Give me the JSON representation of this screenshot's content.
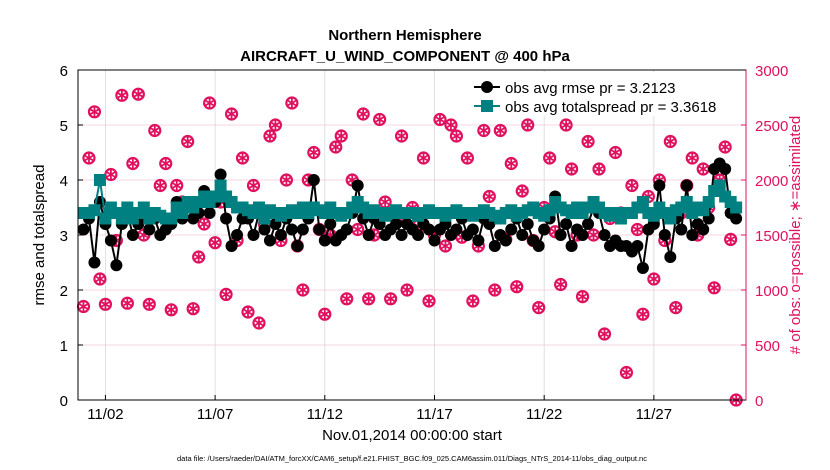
{
  "chart_data": {
    "type": "line",
    "title": "Northern Hemisphere",
    "subtitle": "AIRCRAFT_U_WIND_COMPONENT @ 400 hPa",
    "xlabel": "Nov.01,2014 00:00:00 start",
    "ylabel": "rmse and totalspread",
    "y2label": "# of obs: o=possible; ∗=assimilated",
    "footnote": "data file: /Users/raeder/DAI/ATM_forcXX/CAM6_setup/f.e21.FHIST_BGC.f09_025.CAM6assim.011/Diags_NTrS_2014-11/obs_diag_output.nc",
    "xlim_days": [
      -0.25,
      30.2
    ],
    "ylim": [
      0,
      6
    ],
    "y2lim": [
      0,
      3000
    ],
    "x_start_day": 0,
    "x_step_days": 0.25,
    "xticks": [
      {
        "day": 1,
        "label": "11/02"
      },
      {
        "day": 6,
        "label": "11/07"
      },
      {
        "day": 11,
        "label": "11/12"
      },
      {
        "day": 16,
        "label": "11/17"
      },
      {
        "day": 21,
        "label": "11/22"
      },
      {
        "day": 26,
        "label": "11/27"
      }
    ],
    "yticks": [
      "0",
      "1",
      "2",
      "3",
      "4",
      "5",
      "6"
    ],
    "y2ticks": [
      "0",
      "500",
      "1000",
      "1500",
      "2000",
      "2500",
      "3000"
    ],
    "grid": true,
    "legend_position": "top-right",
    "colors": {
      "rmse": "#000000",
      "spread": "#008080",
      "obs": "#e0115f"
    },
    "series": [
      {
        "name": "obs avg rmse pr = 3.2123",
        "axis": "left",
        "values": [
          3.1,
          3.3,
          2.5,
          3.6,
          3.2,
          2.9,
          2.45,
          3.2,
          3.4,
          3.0,
          3.2,
          3.3,
          3.1,
          3.3,
          3.0,
          3.1,
          3.2,
          3.6,
          3.3,
          3.6,
          3.3,
          3.4,
          3.8,
          3.4,
          3.6,
          4.1,
          3.3,
          2.8,
          3.0,
          3.3,
          3.3,
          3.0,
          3.4,
          3.1,
          2.9,
          3.2,
          3.0,
          3.3,
          3.1,
          2.8,
          3.1,
          3.3,
          4.0,
          3.1,
          2.9,
          3.2,
          2.9,
          3.0,
          3.1,
          3.4,
          3.9,
          3.3,
          3.0,
          3.3,
          3.2,
          3.0,
          3.1,
          3.2,
          3.0,
          3.2,
          3.1,
          3.0,
          3.2,
          3.1,
          2.9,
          3.1,
          3.2,
          3.0,
          3.1,
          3.3,
          3.0,
          3.1,
          2.9,
          3.3,
          3.2,
          2.8,
          3.0,
          2.9,
          3.1,
          3.3,
          3.0,
          3.2,
          2.9,
          2.8,
          3.1,
          3.3,
          3.7,
          3.0,
          3.2,
          2.8,
          3.1,
          3.0,
          3.2,
          3.5,
          3.4,
          3.0,
          2.8,
          2.9,
          2.8,
          2.8,
          2.7,
          2.8,
          2.4,
          3.1,
          3.2,
          3.9,
          3.0,
          2.6,
          3.3,
          3.1,
          3.9,
          3.0,
          3.2,
          3.1,
          3.3,
          4.2,
          4.3,
          4.2,
          3.4,
          3.3
        ]
      },
      {
        "name": "obs avg totalspread pr = 3.3618",
        "axis": "left",
        "values": [
          3.4,
          3.4,
          3.45,
          4.0,
          3.3,
          3.5,
          3.4,
          3.3,
          3.5,
          3.3,
          3.4,
          3.5,
          3.3,
          3.4,
          3.35,
          3.3,
          3.3,
          3.5,
          3.4,
          3.6,
          3.5,
          3.6,
          3.7,
          3.6,
          3.7,
          3.9,
          3.7,
          3.6,
          3.5,
          3.5,
          3.45,
          3.4,
          3.5,
          3.3,
          3.45,
          3.4,
          3.35,
          3.4,
          3.45,
          3.4,
          3.5,
          3.4,
          3.5,
          3.45,
          3.4,
          3.5,
          3.4,
          3.35,
          3.4,
          3.5,
          3.6,
          3.5,
          3.4,
          3.45,
          3.4,
          3.35,
          3.4,
          3.45,
          3.4,
          3.4,
          3.4,
          3.35,
          3.4,
          3.45,
          3.4,
          3.4,
          3.35,
          3.4,
          3.45,
          3.4,
          3.4,
          3.35,
          3.4,
          3.45,
          3.4,
          3.35,
          3.3,
          3.4,
          3.45,
          3.35,
          3.4,
          3.45,
          3.5,
          3.4,
          3.35,
          3.45,
          3.6,
          3.5,
          3.45,
          3.4,
          3.5,
          3.4,
          3.5,
          3.6,
          3.5,
          3.4,
          3.35,
          3.4,
          3.3,
          3.4,
          3.4,
          3.5,
          3.6,
          3.4,
          3.35,
          3.5,
          3.4,
          3.3,
          3.45,
          3.5,
          3.6,
          3.4,
          3.5,
          3.45,
          3.6,
          3.8,
          3.9,
          3.7,
          3.6,
          3.5
        ]
      },
      {
        "name": "obs possible",
        "axis": "right",
        "values": [
          850,
          2200,
          2620,
          1100,
          870,
          2050,
          1450,
          2770,
          880,
          2150,
          2780,
          1500,
          870,
          2450,
          1950,
          2150,
          820,
          1950,
          1800,
          2350,
          830,
          1300,
          1600,
          2700,
          1430,
          1800,
          960,
          2600,
          1450,
          2200,
          800,
          1950,
          700,
          1600,
          2400,
          2500,
          1450,
          2000,
          2700,
          1400,
          1000,
          2000,
          2250,
          1550,
          780,
          1500,
          2300,
          2400,
          920,
          2000,
          1550,
          2600,
          920,
          1500,
          2550,
          1800,
          920,
          1650,
          2400,
          1000,
          1750,
          1580,
          2200,
          900,
          1500,
          2550,
          1400,
          2500,
          2400,
          1480,
          2200,
          900,
          1400,
          2450,
          1850,
          1000,
          2450,
          1460,
          2150,
          1030,
          1900,
          2500,
          1450,
          840,
          1750,
          2200,
          1530,
          1050,
          2500,
          2100,
          1500,
          940,
          2350,
          1500,
          2100,
          600,
          1650,
          2250,
          1700,
          250,
          1950,
          1550,
          780,
          1850,
          1100,
          2000,
          1450,
          2350,
          840,
          1700,
          1950,
          2200,
          1500,
          2100,
          1750,
          1020,
          2000,
          2300,
          1460,
          0
        ]
      },
      {
        "name": "obs assimilated",
        "axis": "right",
        "values": [
          850,
          2200,
          2620,
          1100,
          870,
          2050,
          1450,
          2770,
          880,
          2150,
          2780,
          1500,
          870,
          2450,
          1950,
          2150,
          820,
          1950,
          1800,
          2350,
          830,
          1300,
          1600,
          2700,
          1430,
          1800,
          960,
          2600,
          1450,
          2200,
          800,
          1950,
          700,
          1600,
          2400,
          2500,
          1450,
          2000,
          2700,
          1400,
          1000,
          2000,
          2250,
          1550,
          780,
          1500,
          2300,
          2400,
          920,
          2000,
          1550,
          2600,
          920,
          1500,
          2550,
          1800,
          920,
          1650,
          2400,
          1000,
          1750,
          1580,
          2200,
          900,
          1500,
          2550,
          1400,
          2500,
          2400,
          1480,
          2200,
          900,
          1400,
          2450,
          1850,
          1000,
          2450,
          1460,
          2150,
          1030,
          1900,
          2500,
          1450,
          840,
          1750,
          2200,
          1530,
          1050,
          2500,
          2100,
          1500,
          940,
          2350,
          1500,
          2100,
          600,
          1650,
          2250,
          1700,
          250,
          1950,
          1550,
          780,
          1850,
          1100,
          2000,
          1450,
          2350,
          840,
          1700,
          1950,
          2200,
          1500,
          2100,
          1750,
          1020,
          2000,
          2300,
          1460,
          0
        ]
      }
    ]
  }
}
